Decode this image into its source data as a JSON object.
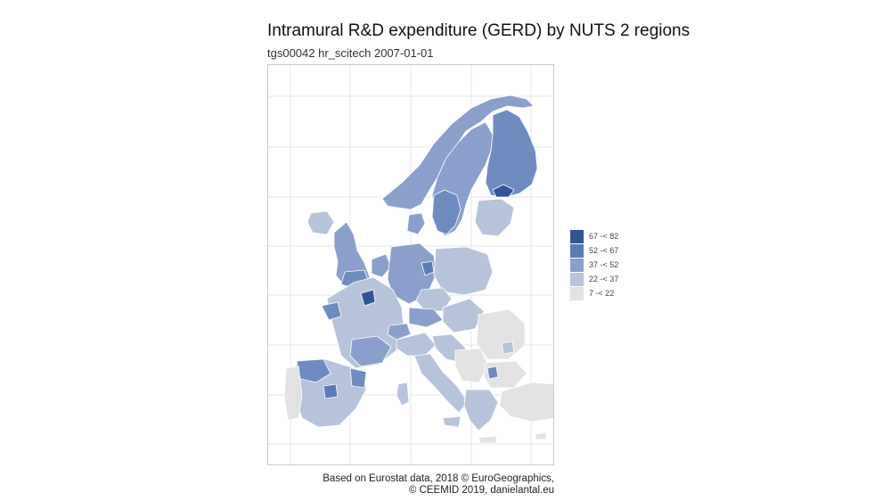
{
  "title": "Intramural R&D expenditure (GERD) by NUTS 2 regions",
  "subtitle": "tgs00042 hr_scitech 2007-01-01",
  "legend": {
    "items": [
      {
        "label": "67 -< 82",
        "color": "#2f5597"
      },
      {
        "label": "52 -< 67",
        "color": "#5b7bb5"
      },
      {
        "label": "37 -< 52",
        "color": "#8a9fcb"
      },
      {
        "label": "22 -< 37",
        "color": "#b7c3db"
      },
      {
        "label": "7 -< 22",
        "color": "#e2e2e2"
      }
    ]
  },
  "caption": {
    "line1": "Based on Eurostat data, 2018 © EuroGeographics,",
    "line2": "© CEEMID 2019, danielantal.eu"
  }
}
